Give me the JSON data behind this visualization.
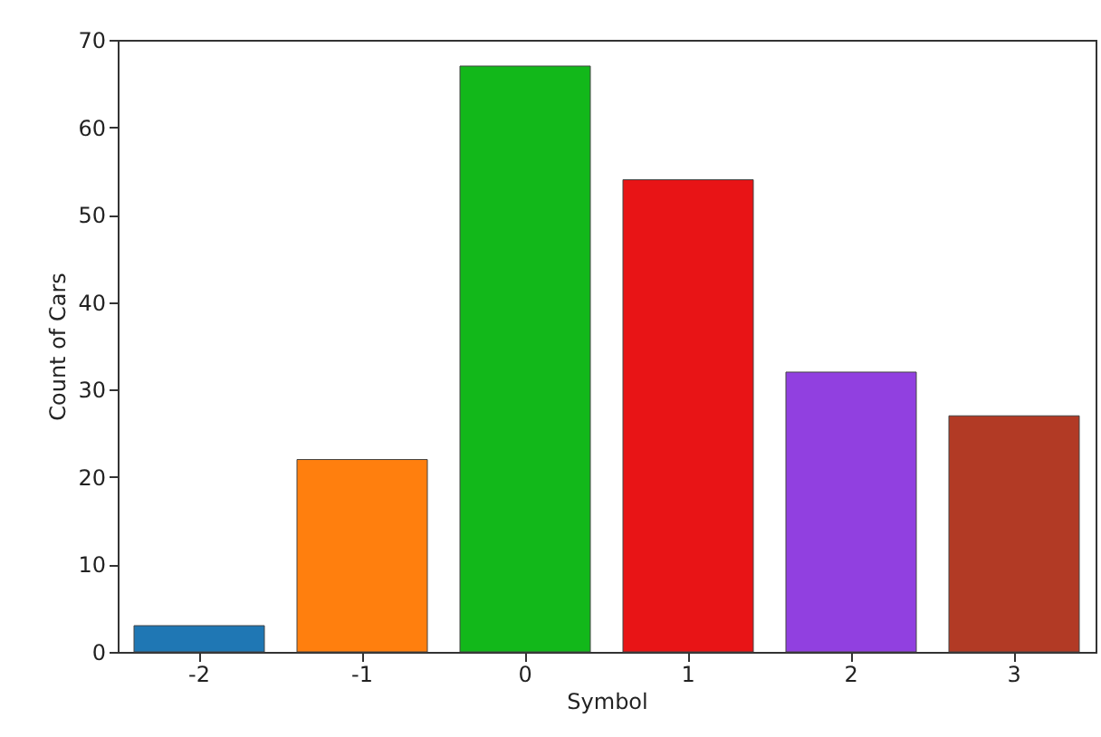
{
  "chart_data": {
    "type": "bar",
    "xlabel": "Symbol",
    "ylabel": "Count of Cars",
    "categories": [
      "-2",
      "-1",
      "0",
      "1",
      "2",
      "3"
    ],
    "values": [
      3,
      22,
      67,
      54,
      32,
      27
    ],
    "colors": [
      "#1f77b4",
      "#ff7f0e",
      "#12b81a",
      "#e81416",
      "#9140e0",
      "#b23a25"
    ],
    "ylim": [
      0,
      70
    ],
    "yticks": [
      0,
      10,
      20,
      30,
      40,
      50,
      60,
      70
    ],
    "grid": false
  }
}
